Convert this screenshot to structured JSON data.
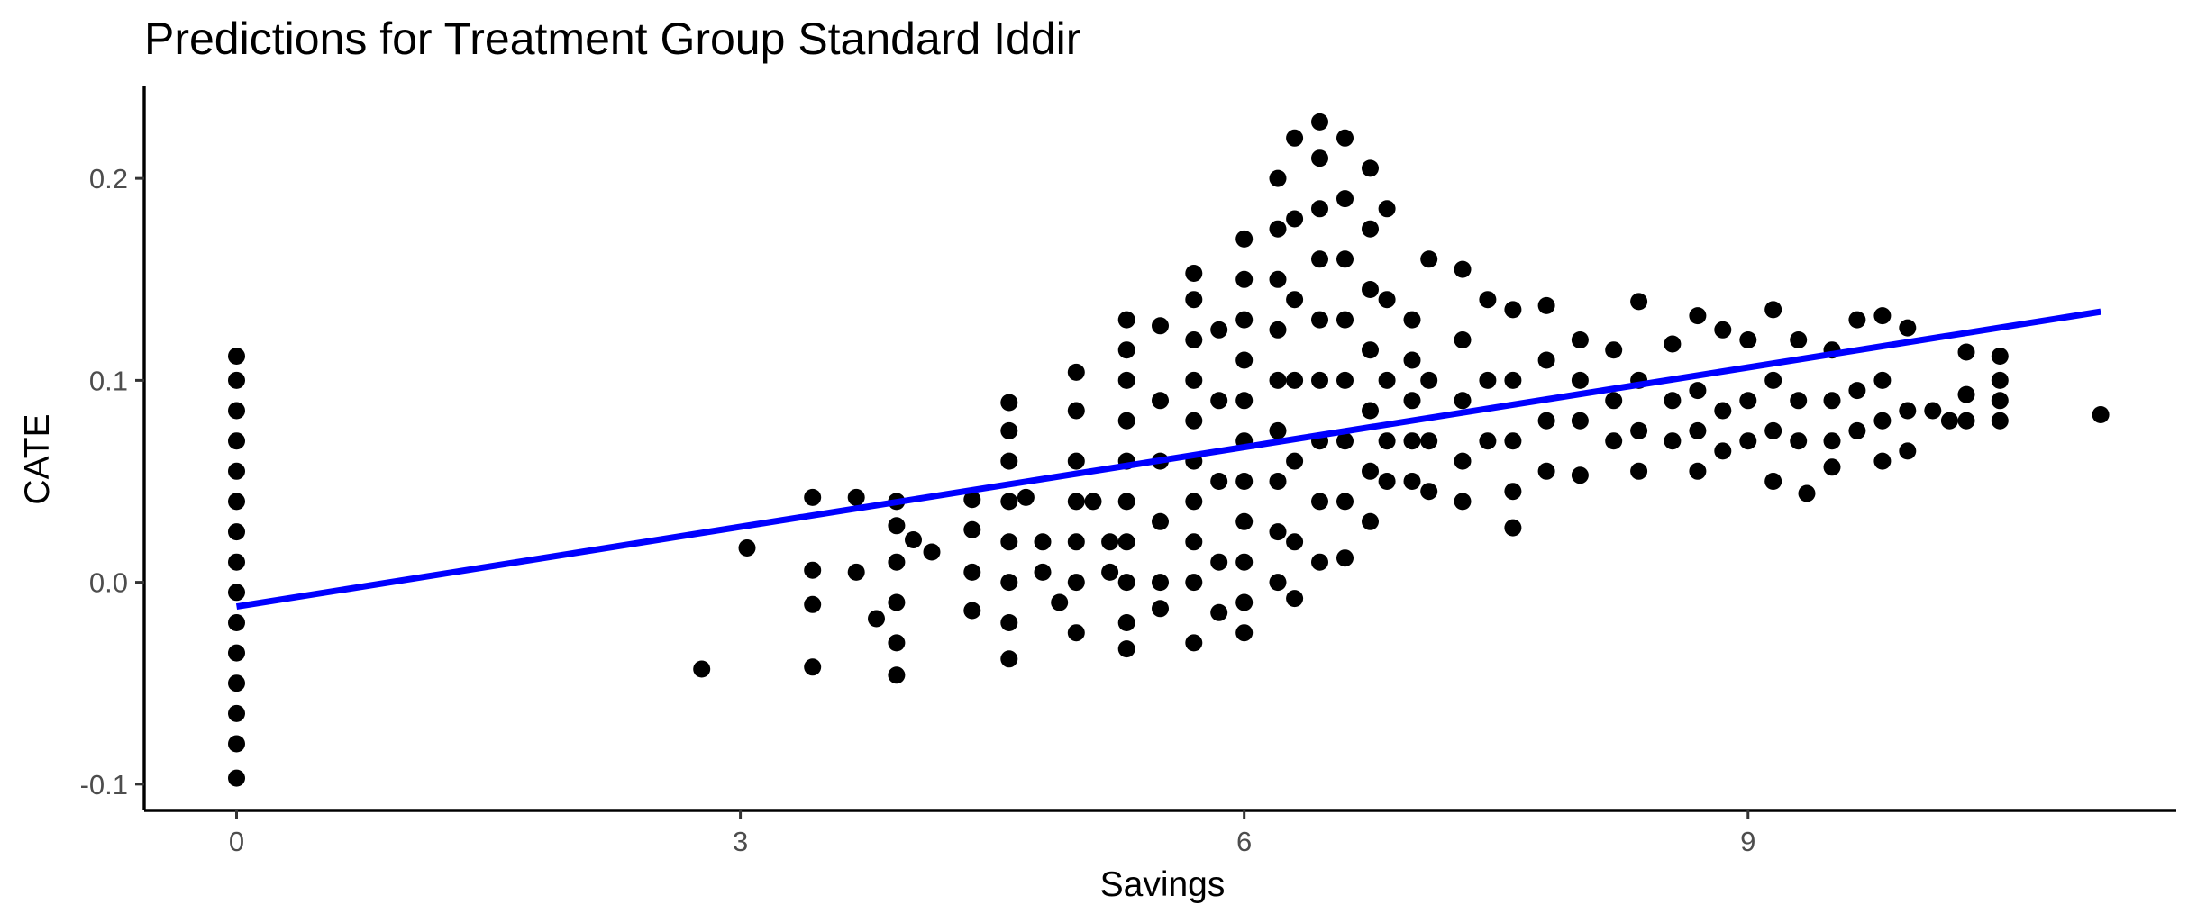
{
  "chart_data": {
    "type": "scatter",
    "title": "Predictions for Treatment Group Standard Iddir",
    "xlabel": "Savings",
    "ylabel": "CATE",
    "xlim": [
      -0.55,
      11.55
    ],
    "ylim": [
      -0.113,
      0.246
    ],
    "x_ticks": [
      0,
      3,
      6,
      9
    ],
    "x_tick_labels": [
      "0",
      "3",
      "6",
      "9"
    ],
    "y_ticks": [
      -0.1,
      0.0,
      0.1,
      0.2
    ],
    "y_tick_labels": [
      "-0.1",
      "0.0",
      "0.1",
      "0.2"
    ],
    "grid": false,
    "legend": "none",
    "point_color": "#000000",
    "fit_line_color": "#0000ff",
    "fit_line": {
      "x": [
        0,
        11.1
      ],
      "y": [
        -0.012,
        0.134
      ]
    },
    "series": [
      {
        "values": [
          {
            "x": 0,
            "y": 0.112
          },
          {
            "x": 0,
            "y": 0.1
          },
          {
            "x": 0,
            "y": 0.085
          },
          {
            "x": 0,
            "y": 0.07
          },
          {
            "x": 0,
            "y": 0.055
          },
          {
            "x": 0,
            "y": 0.04
          },
          {
            "x": 0,
            "y": 0.025
          },
          {
            "x": 0,
            "y": 0.01
          },
          {
            "x": 0,
            "y": -0.005
          },
          {
            "x": 0,
            "y": -0.02
          },
          {
            "x": 0,
            "y": -0.035
          },
          {
            "x": 0,
            "y": -0.05
          },
          {
            "x": 0,
            "y": -0.065
          },
          {
            "x": 0,
            "y": -0.08
          },
          {
            "x": 0,
            "y": -0.097
          },
          {
            "x": 2.77,
            "y": -0.043
          },
          {
            "x": 3.04,
            "y": 0.017
          },
          {
            "x": 3.43,
            "y": 0.042
          },
          {
            "x": 3.43,
            "y": 0.006
          },
          {
            "x": 3.43,
            "y": -0.011
          },
          {
            "x": 3.43,
            "y": -0.042
          },
          {
            "x": 3.69,
            "y": 0.042
          },
          {
            "x": 3.69,
            "y": 0.005
          },
          {
            "x": 3.81,
            "y": -0.018
          },
          {
            "x": 3.93,
            "y": 0.04
          },
          {
            "x": 3.93,
            "y": 0.028
          },
          {
            "x": 3.93,
            "y": 0.01
          },
          {
            "x": 3.93,
            "y": -0.01
          },
          {
            "x": 3.93,
            "y": -0.03
          },
          {
            "x": 3.93,
            "y": -0.046
          },
          {
            "x": 4.03,
            "y": 0.021
          },
          {
            "x": 4.14,
            "y": 0.015
          },
          {
            "x": 4.38,
            "y": 0.041
          },
          {
            "x": 4.38,
            "y": 0.026
          },
          {
            "x": 4.38,
            "y": 0.005
          },
          {
            "x": 4.38,
            "y": -0.014
          },
          {
            "x": 4.6,
            "y": 0.089
          },
          {
            "x": 4.6,
            "y": 0.075
          },
          {
            "x": 4.6,
            "y": 0.06
          },
          {
            "x": 4.6,
            "y": 0.04
          },
          {
            "x": 4.6,
            "y": 0.02
          },
          {
            "x": 4.6,
            "y": 0.0
          },
          {
            "x": 4.6,
            "y": -0.02
          },
          {
            "x": 4.6,
            "y": -0.038
          },
          {
            "x": 4.7,
            "y": 0.042
          },
          {
            "x": 4.8,
            "y": 0.02
          },
          {
            "x": 4.8,
            "y": 0.005
          },
          {
            "x": 4.9,
            "y": -0.01
          },
          {
            "x": 5.0,
            "y": 0.104
          },
          {
            "x": 5.0,
            "y": 0.085
          },
          {
            "x": 5.0,
            "y": 0.06
          },
          {
            "x": 5.0,
            "y": 0.04
          },
          {
            "x": 5.0,
            "y": 0.02
          },
          {
            "x": 5.0,
            "y": 0.0
          },
          {
            "x": 5.0,
            "y": -0.025
          },
          {
            "x": 5.1,
            "y": 0.04
          },
          {
            "x": 5.2,
            "y": 0.02
          },
          {
            "x": 5.2,
            "y": 0.005
          },
          {
            "x": 5.3,
            "y": 0.13
          },
          {
            "x": 5.3,
            "y": 0.115
          },
          {
            "x": 5.3,
            "y": 0.1
          },
          {
            "x": 5.3,
            "y": 0.08
          },
          {
            "x": 5.3,
            "y": 0.06
          },
          {
            "x": 5.3,
            "y": 0.04
          },
          {
            "x": 5.3,
            "y": 0.02
          },
          {
            "x": 5.3,
            "y": 0.0
          },
          {
            "x": 5.3,
            "y": -0.02
          },
          {
            "x": 5.3,
            "y": -0.033
          },
          {
            "x": 5.5,
            "y": 0.127
          },
          {
            "x": 5.5,
            "y": 0.09
          },
          {
            "x": 5.5,
            "y": 0.06
          },
          {
            "x": 5.5,
            "y": 0.03
          },
          {
            "x": 5.5,
            "y": 0.0
          },
          {
            "x": 5.5,
            "y": -0.013
          },
          {
            "x": 5.7,
            "y": 0.153
          },
          {
            "x": 5.7,
            "y": 0.14
          },
          {
            "x": 5.7,
            "y": 0.12
          },
          {
            "x": 5.7,
            "y": 0.1
          },
          {
            "x": 5.7,
            "y": 0.08
          },
          {
            "x": 5.7,
            "y": 0.06
          },
          {
            "x": 5.7,
            "y": 0.04
          },
          {
            "x": 5.7,
            "y": 0.02
          },
          {
            "x": 5.7,
            "y": 0.0
          },
          {
            "x": 5.7,
            "y": -0.03
          },
          {
            "x": 5.85,
            "y": 0.125
          },
          {
            "x": 5.85,
            "y": 0.09
          },
          {
            "x": 5.85,
            "y": 0.05
          },
          {
            "x": 5.85,
            "y": 0.01
          },
          {
            "x": 5.85,
            "y": -0.015
          },
          {
            "x": 6.0,
            "y": 0.17
          },
          {
            "x": 6.0,
            "y": 0.15
          },
          {
            "x": 6.0,
            "y": 0.13
          },
          {
            "x": 6.0,
            "y": 0.11
          },
          {
            "x": 6.0,
            "y": 0.09
          },
          {
            "x": 6.0,
            "y": 0.07
          },
          {
            "x": 6.0,
            "y": 0.05
          },
          {
            "x": 6.0,
            "y": 0.03
          },
          {
            "x": 6.0,
            "y": 0.01
          },
          {
            "x": 6.0,
            "y": -0.01
          },
          {
            "x": 6.0,
            "y": -0.025
          },
          {
            "x": 6.2,
            "y": 0.2
          },
          {
            "x": 6.2,
            "y": 0.175
          },
          {
            "x": 6.2,
            "y": 0.15
          },
          {
            "x": 6.2,
            "y": 0.125
          },
          {
            "x": 6.2,
            "y": 0.1
          },
          {
            "x": 6.2,
            "y": 0.075
          },
          {
            "x": 6.2,
            "y": 0.05
          },
          {
            "x": 6.2,
            "y": 0.025
          },
          {
            "x": 6.2,
            "y": 0.0
          },
          {
            "x": 6.3,
            "y": 0.22
          },
          {
            "x": 6.3,
            "y": 0.18
          },
          {
            "x": 6.3,
            "y": 0.14
          },
          {
            "x": 6.3,
            "y": 0.1
          },
          {
            "x": 6.3,
            "y": 0.06
          },
          {
            "x": 6.3,
            "y": 0.02
          },
          {
            "x": 6.3,
            "y": -0.008
          },
          {
            "x": 6.45,
            "y": 0.228
          },
          {
            "x": 6.45,
            "y": 0.21
          },
          {
            "x": 6.45,
            "y": 0.185
          },
          {
            "x": 6.45,
            "y": 0.16
          },
          {
            "x": 6.45,
            "y": 0.13
          },
          {
            "x": 6.45,
            "y": 0.1
          },
          {
            "x": 6.45,
            "y": 0.07
          },
          {
            "x": 6.45,
            "y": 0.04
          },
          {
            "x": 6.45,
            "y": 0.01
          },
          {
            "x": 6.6,
            "y": 0.22
          },
          {
            "x": 6.6,
            "y": 0.19
          },
          {
            "x": 6.6,
            "y": 0.16
          },
          {
            "x": 6.6,
            "y": 0.13
          },
          {
            "x": 6.6,
            "y": 0.1
          },
          {
            "x": 6.6,
            "y": 0.07
          },
          {
            "x": 6.6,
            "y": 0.04
          },
          {
            "x": 6.6,
            "y": 0.012
          },
          {
            "x": 6.75,
            "y": 0.205
          },
          {
            "x": 6.75,
            "y": 0.175
          },
          {
            "x": 6.75,
            "y": 0.145
          },
          {
            "x": 6.75,
            "y": 0.115
          },
          {
            "x": 6.75,
            "y": 0.085
          },
          {
            "x": 6.75,
            "y": 0.055
          },
          {
            "x": 6.75,
            "y": 0.03
          },
          {
            "x": 6.85,
            "y": 0.185
          },
          {
            "x": 6.85,
            "y": 0.14
          },
          {
            "x": 6.85,
            "y": 0.1
          },
          {
            "x": 6.85,
            "y": 0.07
          },
          {
            "x": 6.85,
            "y": 0.05
          },
          {
            "x": 7.0,
            "y": 0.13
          },
          {
            "x": 7.0,
            "y": 0.11
          },
          {
            "x": 7.0,
            "y": 0.09
          },
          {
            "x": 7.0,
            "y": 0.07
          },
          {
            "x": 7.0,
            "y": 0.05
          },
          {
            "x": 7.1,
            "y": 0.16
          },
          {
            "x": 7.1,
            "y": 0.1
          },
          {
            "x": 7.1,
            "y": 0.07
          },
          {
            "x": 7.1,
            "y": 0.045
          },
          {
            "x": 7.3,
            "y": 0.155
          },
          {
            "x": 7.3,
            "y": 0.12
          },
          {
            "x": 7.3,
            "y": 0.09
          },
          {
            "x": 7.3,
            "y": 0.06
          },
          {
            "x": 7.3,
            "y": 0.04
          },
          {
            "x": 7.45,
            "y": 0.14
          },
          {
            "x": 7.45,
            "y": 0.1
          },
          {
            "x": 7.45,
            "y": 0.07
          },
          {
            "x": 7.6,
            "y": 0.135
          },
          {
            "x": 7.6,
            "y": 0.1
          },
          {
            "x": 7.6,
            "y": 0.07
          },
          {
            "x": 7.6,
            "y": 0.045
          },
          {
            "x": 7.6,
            "y": 0.027
          },
          {
            "x": 7.8,
            "y": 0.137
          },
          {
            "x": 7.8,
            "y": 0.11
          },
          {
            "x": 7.8,
            "y": 0.08
          },
          {
            "x": 7.8,
            "y": 0.055
          },
          {
            "x": 8.0,
            "y": 0.12
          },
          {
            "x": 8.0,
            "y": 0.1
          },
          {
            "x": 8.0,
            "y": 0.08
          },
          {
            "x": 8.0,
            "y": 0.053
          },
          {
            "x": 8.2,
            "y": 0.115
          },
          {
            "x": 8.2,
            "y": 0.09
          },
          {
            "x": 8.2,
            "y": 0.07
          },
          {
            "x": 8.35,
            "y": 0.139
          },
          {
            "x": 8.35,
            "y": 0.1
          },
          {
            "x": 8.35,
            "y": 0.075
          },
          {
            "x": 8.35,
            "y": 0.055
          },
          {
            "x": 8.55,
            "y": 0.118
          },
          {
            "x": 8.55,
            "y": 0.09
          },
          {
            "x": 8.55,
            "y": 0.07
          },
          {
            "x": 8.7,
            "y": 0.132
          },
          {
            "x": 8.7,
            "y": 0.095
          },
          {
            "x": 8.7,
            "y": 0.075
          },
          {
            "x": 8.7,
            "y": 0.055
          },
          {
            "x": 8.85,
            "y": 0.125
          },
          {
            "x": 8.85,
            "y": 0.085
          },
          {
            "x": 8.85,
            "y": 0.065
          },
          {
            "x": 9.0,
            "y": 0.12
          },
          {
            "x": 9.0,
            "y": 0.09
          },
          {
            "x": 9.0,
            "y": 0.07
          },
          {
            "x": 9.15,
            "y": 0.135
          },
          {
            "x": 9.15,
            "y": 0.1
          },
          {
            "x": 9.15,
            "y": 0.075
          },
          {
            "x": 9.15,
            "y": 0.05
          },
          {
            "x": 9.3,
            "y": 0.12
          },
          {
            "x": 9.3,
            "y": 0.09
          },
          {
            "x": 9.3,
            "y": 0.07
          },
          {
            "x": 9.35,
            "y": 0.044
          },
          {
            "x": 9.5,
            "y": 0.115
          },
          {
            "x": 9.5,
            "y": 0.09
          },
          {
            "x": 9.5,
            "y": 0.07
          },
          {
            "x": 9.5,
            "y": 0.057
          },
          {
            "x": 9.65,
            "y": 0.13
          },
          {
            "x": 9.65,
            "y": 0.095
          },
          {
            "x": 9.65,
            "y": 0.075
          },
          {
            "x": 9.8,
            "y": 0.132
          },
          {
            "x": 9.8,
            "y": 0.1
          },
          {
            "x": 9.8,
            "y": 0.08
          },
          {
            "x": 9.8,
            "y": 0.06
          },
          {
            "x": 9.95,
            "y": 0.126
          },
          {
            "x": 9.95,
            "y": 0.085
          },
          {
            "x": 9.95,
            "y": 0.065
          },
          {
            "x": 10.1,
            "y": 0.085
          },
          {
            "x": 10.2,
            "y": 0.08
          },
          {
            "x": 10.3,
            "y": 0.114
          },
          {
            "x": 10.3,
            "y": 0.093
          },
          {
            "x": 10.3,
            "y": 0.08
          },
          {
            "x": 10.5,
            "y": 0.112
          },
          {
            "x": 10.5,
            "y": 0.1
          },
          {
            "x": 10.5,
            "y": 0.09
          },
          {
            "x": 10.5,
            "y": 0.08
          },
          {
            "x": 11.1,
            "y": 0.083
          }
        ]
      }
    ]
  }
}
